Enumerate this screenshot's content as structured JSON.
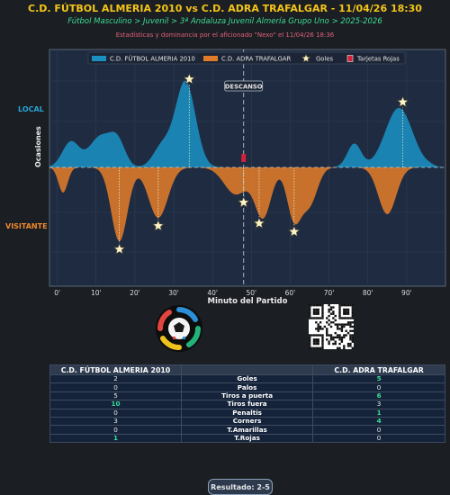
{
  "header": {
    "title": "C.D. FÚTBOL ALMERIA 2010 vs C.D. ADRA TRAFALGAR - 11/04/26 18:30",
    "subtitle": "Fútbol Masculino > Juvenil > 3ª Andaluza Juvenil Almería Grupo Uno > 2025-2026",
    "credits": "Estadísticas y dominancia por el aficionado \"Nexo\" el 11/04/26 18:36"
  },
  "side_labels": {
    "local": "LOCAL",
    "visitor": "VISITANTE"
  },
  "chart_data": {
    "type": "area",
    "xlabel": "Minuto del Partido",
    "ylabel": "Ocasiones",
    "xlim": [
      -2,
      100
    ],
    "x_ticks": [
      "0'",
      "10'",
      "20'",
      "30'",
      "40'",
      "50'",
      "60'",
      "70'",
      "80'",
      "90'"
    ],
    "halftime_minute": 48,
    "halftime_label": "DESCANSO",
    "legend": [
      "C.D. FÚTBOL ALMERIA 2010",
      "C.D. ADRA TRAFALGAR",
      "Goles",
      "Tarjetas Rojas"
    ],
    "legend_placement": "top",
    "grid": true,
    "series": [
      {
        "name": "C.D. FÚTBOL ALMERIA 2010",
        "color": "#1a8fc0",
        "peaks": [
          {
            "minute": 3.5,
            "value": 0.27,
            "width": 2.2
          },
          {
            "minute": 11,
            "value": 0.32,
            "width": 2.8
          },
          {
            "minute": 15.5,
            "value": 0.26,
            "width": 2.0
          },
          {
            "minute": 27,
            "value": 0.22,
            "width": 2.3
          },
          {
            "minute": 33,
            "value": 0.91,
            "width": 2.6
          },
          {
            "minute": 76.5,
            "value": 0.25,
            "width": 1.8
          },
          {
            "minute": 88,
            "value": 0.63,
            "width": 3.5
          },
          {
            "minute": 96,
            "value": 0.01,
            "width": 1.0
          }
        ]
      },
      {
        "name": "C.D. ADRA TRAFALGAR",
        "color": "#e07b2a",
        "peaks": [
          {
            "minute": 1.5,
            "value": 0.28,
            "width": 1.2
          },
          {
            "minute": 16,
            "value": 0.82,
            "width": 2.1
          },
          {
            "minute": 26,
            "value": 0.56,
            "width": 2.5
          },
          {
            "minute": 46,
            "value": 0.3,
            "width": 3.0
          },
          {
            "minute": 53,
            "value": 0.55,
            "width": 2.1
          },
          {
            "minute": 61,
            "value": 0.57,
            "width": 1.8
          },
          {
            "minute": 65,
            "value": 0.4,
            "width": 2.0
          },
          {
            "minute": 85,
            "value": 0.52,
            "width": 2.3
          }
        ]
      }
    ],
    "goals": [
      {
        "minute": 34,
        "team": "local"
      },
      {
        "minute": 89,
        "team": "local"
      },
      {
        "minute": 16,
        "team": "visitor"
      },
      {
        "minute": 26,
        "team": "visitor"
      },
      {
        "minute": 48,
        "team": "visitor"
      },
      {
        "minute": 52,
        "team": "visitor"
      },
      {
        "minute": 61,
        "team": "visitor"
      }
    ],
    "red_cards": [
      {
        "minute": 48,
        "team": "local"
      }
    ]
  },
  "colors": {
    "local": "#1a8fc0",
    "visitor": "#e07b2a",
    "accent": "#f5c518",
    "win": "#3ddc97"
  },
  "stats": {
    "home_team": "C.D. FÚTBOL ALMERIA 2010",
    "away_team": "C.D. ADRA TRAFALGAR",
    "rows": [
      {
        "label": "Goles",
        "home": "2",
        "away": "5",
        "winner": "away"
      },
      {
        "label": "Palos",
        "home": "0",
        "away": "0",
        "winner": ""
      },
      {
        "label": "Tiros a puerta",
        "home": "5",
        "away": "6",
        "winner": "away"
      },
      {
        "label": "Tiros fuera",
        "home": "10",
        "away": "3",
        "winner": "home"
      },
      {
        "label": "Penaltis",
        "home": "0",
        "away": "1",
        "winner": "away"
      },
      {
        "label": "Corners",
        "home": "3",
        "away": "4",
        "winner": "away"
      },
      {
        "label": "T.Amarillas",
        "home": "0",
        "away": "0",
        "winner": ""
      },
      {
        "label": "T.Rojas",
        "home": "1",
        "away": "0",
        "winner": "home"
      }
    ]
  },
  "footer": {
    "result": "Resultado: 2-5"
  },
  "icons": {
    "logo": "club-logo-icon",
    "qr": "qr-code-icon"
  }
}
